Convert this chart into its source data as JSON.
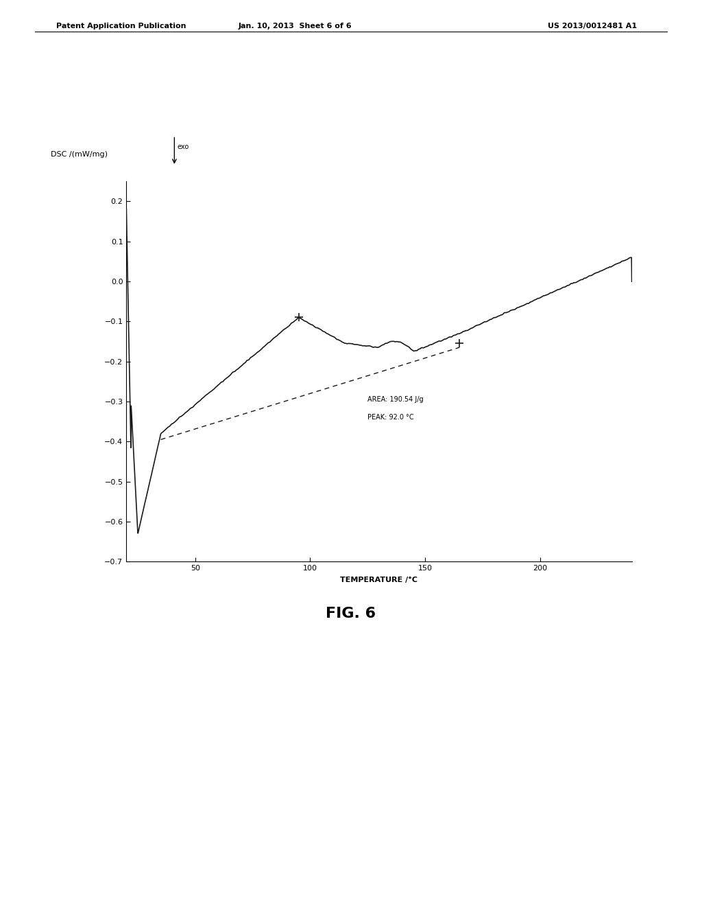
{
  "header_left": "Patent Application Publication",
  "header_mid": "Jan. 10, 2013  Sheet 6 of 6",
  "header_right": "US 2013/0012481 A1",
  "fig_label": "FIG. 6",
  "xlabel": "TEMPERATURE /°C",
  "ylabel": "DSC /(mW/mg)",
  "exo_label": "exo",
  "annotation_line1": "AREA: 190.54 J/g",
  "annotation_line2": "PEAK: 92.0 °C",
  "xlim": [
    20,
    240
  ],
  "ylim": [
    -0.7,
    0.25
  ],
  "yticks": [
    0.2,
    0.1,
    0.0,
    -0.1,
    -0.2,
    -0.3,
    -0.4,
    -0.5,
    -0.6,
    -0.7
  ],
  "xticks": [
    50,
    100,
    150,
    200
  ],
  "background_color": "#ffffff",
  "line_color": "#1a1a1a",
  "dashed_color": "#1a1a1a"
}
